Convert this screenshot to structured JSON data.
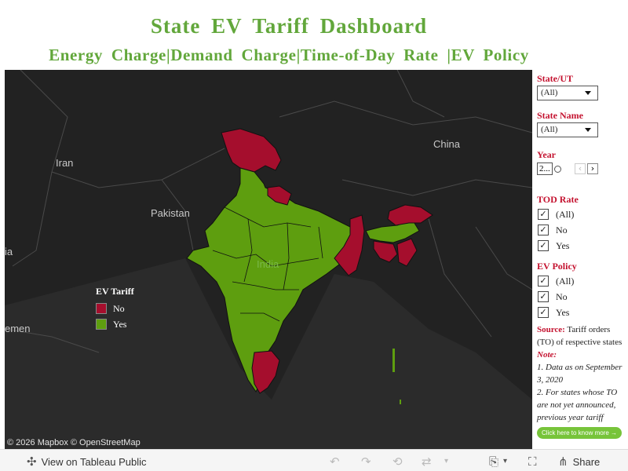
{
  "header": {
    "title": "State  EV  Tariff  Dashboard",
    "subtitle": "Energy  Charge|Demand  Charge|Time-of-Day  Rate  |EV  Policy"
  },
  "map": {
    "labels": {
      "china": "China",
      "iran": "Iran",
      "pakistan": "Pakistan",
      "india": "India",
      "yemen_partial": "emen",
      "saudi_partial": "ia"
    },
    "attribution": "© 2026 Mapbox  © OpenStreetMap",
    "legend": {
      "title": "EV  Tariff",
      "items": [
        {
          "label": "No",
          "color": "#a50e2d"
        },
        {
          "label": "Yes",
          "color": "#5e9e0f"
        }
      ]
    }
  },
  "filters": {
    "state_ut": {
      "label": "State/UT",
      "value": "(All)"
    },
    "state_name": {
      "label": "State  Name",
      "value": "(All)"
    },
    "year": {
      "label": "Year",
      "value": "2..."
    },
    "tod_rate": {
      "label": "TOD  Rate",
      "options": [
        "(All)",
        "No",
        "Yes"
      ]
    },
    "ev_policy": {
      "label": "EV  Policy",
      "options": [
        "(All)",
        "No",
        "Yes"
      ]
    }
  },
  "notes": {
    "source_label": "Source:",
    "source_text": " Tariff orders (TO) of respective states",
    "note_label": "Note:",
    "line1": "1. Data as on September 3, 2020",
    "line2": "2. For states whose TO are not yet announced, previous year tariff",
    "button": "Click here to know more →"
  },
  "toolbar": {
    "view_label": "View on Tableau Public",
    "share_label": "Share"
  },
  "colors": {
    "title_green": "#62a73b",
    "filter_red": "#c4122f",
    "ev_no": "#a50e2d",
    "ev_yes": "#5e9e0f",
    "map_bg": "#1a1a1a"
  }
}
